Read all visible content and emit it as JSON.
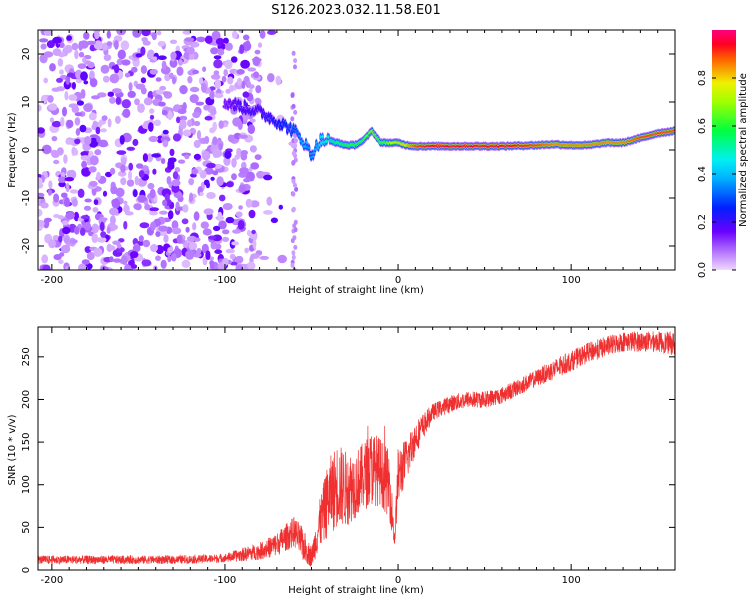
{
  "chart_data": [
    {
      "type": "heatmap",
      "title": "S126.2023.032.11.58.E01",
      "xlabel": "Height of straight line (km)",
      "ylabel": "Frequency (Hz)",
      "xlim": [
        -208,
        160
      ],
      "ylim": [
        -25,
        25
      ],
      "x_ticks": [
        "-200",
        "-100",
        "0",
        "100"
      ],
      "x_tick_values": [
        -200,
        -100,
        0,
        100
      ],
      "y_ticks": [
        "20",
        "10",
        "0",
        "-10",
        "-20"
      ],
      "y_tick_values": [
        20,
        10,
        0,
        -10,
        -20
      ],
      "colorbar": {
        "label": "Normalized spectral amplitude",
        "range": [
          0,
          1
        ],
        "ticks": [
          "0.0",
          "0.2",
          "0.4",
          "0.6",
          "0.8"
        ],
        "tick_values": [
          0,
          0.2,
          0.4,
          0.6,
          0.8
        ],
        "colormap": [
          "#f0d8ff",
          "#6a00ff",
          "#0020ff",
          "#00e0ff",
          "#00ff40",
          "#f0f000",
          "#ff2000",
          "#ff0080"
        ]
      },
      "noise_region_x": [
        -208,
        -80
      ],
      "ridge": {
        "x": [
          -100,
          -90,
          -80,
          -70,
          -60,
          -55,
          -50,
          -45,
          -40,
          -35,
          -30,
          -25,
          -20,
          -15,
          -10,
          -5,
          0,
          5,
          10,
          20,
          40,
          60,
          80,
          90,
          100,
          110,
          120,
          130,
          140,
          150,
          160
        ],
        "freq": [
          10,
          9,
          8,
          6,
          4,
          2,
          -1,
          2,
          2,
          1.5,
          1,
          1,
          2,
          4,
          1.5,
          1.5,
          1.5,
          1,
          0.8,
          0.8,
          0.8,
          0.8,
          1,
          1.2,
          1,
          1,
          1.5,
          1.5,
          2.5,
          3.5,
          4
        ],
        "amplitude": [
          0.15,
          0.2,
          0.2,
          0.25,
          0.3,
          0.4,
          0.35,
          0.45,
          0.5,
          0.55,
          0.6,
          0.6,
          0.6,
          0.7,
          0.6,
          0.7,
          0.75,
          0.8,
          0.9,
          0.95,
          0.95,
          0.95,
          0.9,
          0.85,
          0.85,
          0.85,
          0.85,
          0.85,
          0.9,
          0.9,
          0.9
        ]
      }
    },
    {
      "type": "line",
      "xlabel": "Height of straight line (km)",
      "ylabel": "SNR (10 * v/v)",
      "xlim": [
        -208,
        160
      ],
      "ylim": [
        0,
        285
      ],
      "x_ticks": [
        "-200",
        "-100",
        "0",
        "100"
      ],
      "x_tick_values": [
        -200,
        -100,
        0,
        100
      ],
      "y_ticks": [
        "0",
        "50",
        "100",
        "150",
        "200",
        "250"
      ],
      "y_tick_values": [
        0,
        50,
        100,
        150,
        200,
        250
      ],
      "color": "#f03030",
      "series": [
        {
          "x": [
            -208,
            -190,
            -170,
            -150,
            -130,
            -110,
            -100,
            -90,
            -80,
            -70,
            -65,
            -60,
            -55,
            -50,
            -45,
            -40,
            -35,
            -30,
            -25,
            -20,
            -15,
            -10,
            -5,
            -2,
            0,
            5,
            10,
            15,
            20,
            30,
            40,
            50,
            60,
            70,
            80,
            90,
            100,
            110,
            120,
            130,
            140,
            150,
            160
          ],
          "values": [
            12,
            12,
            12,
            12,
            12,
            13,
            14,
            18,
            22,
            30,
            38,
            45,
            30,
            15,
            55,
            85,
            100,
            95,
            100,
            110,
            120,
            115,
            100,
            35,
            110,
            130,
            155,
            170,
            185,
            195,
            200,
            200,
            205,
            215,
            225,
            235,
            245,
            255,
            262,
            268,
            268,
            268,
            265
          ],
          "noise": [
            5,
            5,
            5,
            5,
            5,
            5,
            5,
            8,
            10,
            14,
            16,
            18,
            20,
            12,
            30,
            45,
            50,
            45,
            40,
            40,
            45,
            40,
            40,
            10,
            35,
            25,
            20,
            15,
            10,
            10,
            10,
            10,
            10,
            10,
            10,
            12,
            12,
            12,
            12,
            12,
            12,
            12,
            14
          ]
        }
      ]
    }
  ]
}
